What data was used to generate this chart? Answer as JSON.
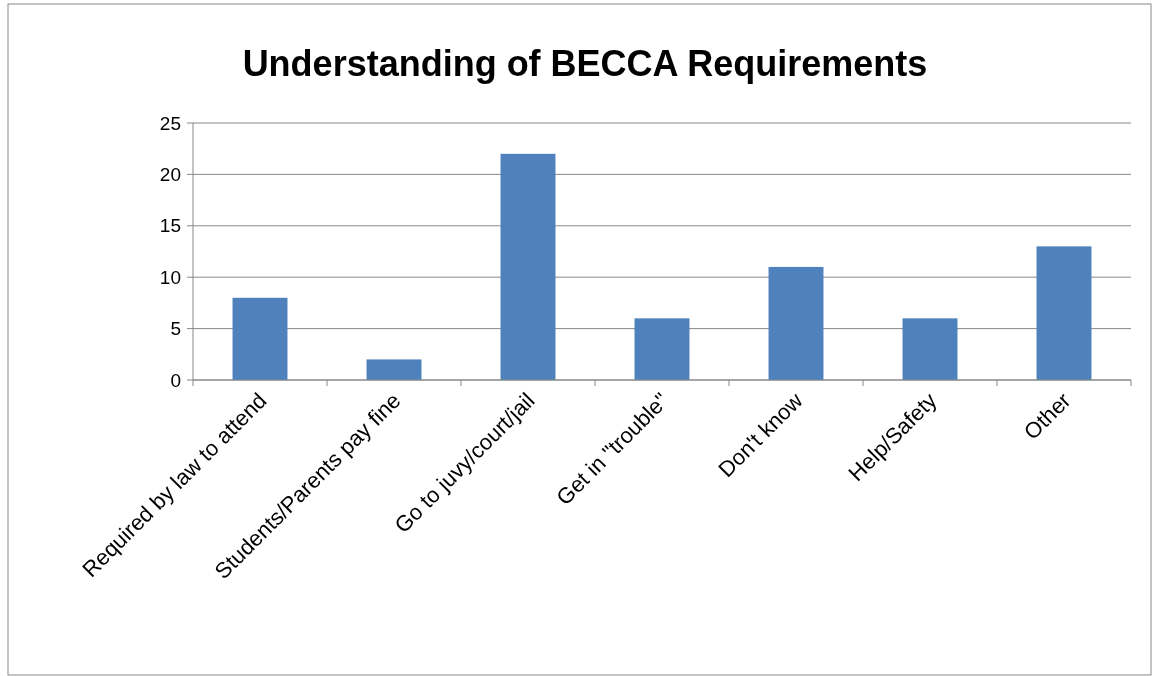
{
  "chart_data": {
    "type": "bar",
    "title": "Understanding of BECCA Requirements",
    "categories": [
      "Required by law to attend",
      "Students/Parents pay fine",
      "Go to juvy/court/jail",
      "Get in \"trouble\"",
      "Don't know",
      "Help/Safety",
      "Other"
    ],
    "values": [
      8,
      2,
      22,
      6,
      11,
      6,
      13
    ],
    "color": "#4f81bd",
    "ylim": [
      0,
      25
    ],
    "yticks": [
      0,
      5,
      10,
      15,
      20,
      25
    ],
    "grid": "y"
  }
}
